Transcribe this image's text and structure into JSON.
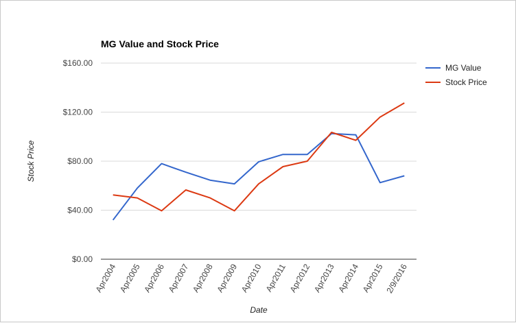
{
  "chart_data": {
    "type": "line",
    "title": "MG Value and Stock Price",
    "xlabel": "Date",
    "ylabel": "Stock Price",
    "categories": [
      "Apr2004",
      "Apr2005",
      "Apr2006",
      "Apr2007",
      "Apr2008",
      "Apr2009",
      "Apr2010",
      "Apr2011",
      "Apr2012",
      "Apr2013",
      "Apr2014",
      "Apr2015",
      "2/9/2016"
    ],
    "series": [
      {
        "name": "MG Value",
        "color": "#3366cc",
        "values": [
          32,
          58,
          78,
          71,
          64.5,
          61.5,
          79.5,
          85.5,
          85.5,
          102.5,
          101.5,
          62.5,
          68
        ]
      },
      {
        "name": "Stock Price",
        "color": "#dc3912",
        "values": [
          52.5,
          50,
          39.5,
          56.5,
          50,
          39.5,
          61.5,
          75.5,
          80,
          103.5,
          97,
          116,
          127.5
        ]
      }
    ],
    "ylim": [
      0,
      160
    ],
    "yticks": [
      0,
      40,
      80,
      120,
      160
    ],
    "ytick_labels": [
      "$0.00",
      "$40.00",
      "$80.00",
      "$120.00",
      "$160.00"
    ],
    "grid": true,
    "legend_position": "right"
  }
}
